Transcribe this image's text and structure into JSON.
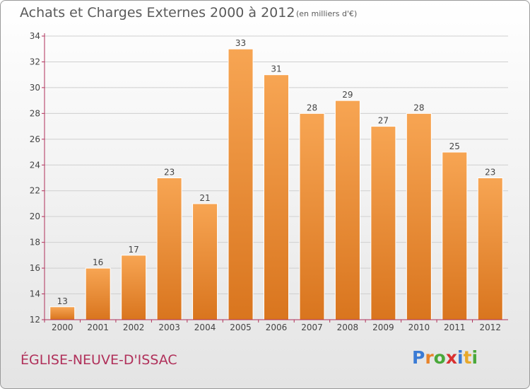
{
  "title": "Achats et Charges Externes 2000 à 2012",
  "unit_note": "(en milliers d'€)",
  "commune": "ÉGLISE-NEUVE-D'ISSAC",
  "logo": {
    "text": "Proxiti",
    "letters": [
      {
        "ch": "P",
        "color": "#3a7bd5"
      },
      {
        "ch": "r",
        "color": "#e8832a"
      },
      {
        "ch": "o",
        "color": "#4aa83a"
      },
      {
        "ch": "x",
        "color": "#d93030"
      },
      {
        "ch": "i",
        "color": "#3a7bd5"
      },
      {
        "ch": "t",
        "color": "#e8a82a"
      },
      {
        "ch": "i",
        "color": "#4aa83a"
      }
    ]
  },
  "colors": {
    "bar_light": "#f7a553",
    "bar_dark": "#d9751e",
    "axis": "#b0305a",
    "grid": "#cfcfcf"
  },
  "chart_data": {
    "type": "bar",
    "categories": [
      "2000",
      "2001",
      "2002",
      "2003",
      "2004",
      "2005",
      "2006",
      "2007",
      "2008",
      "2009",
      "2010",
      "2011",
      "2012"
    ],
    "values": [
      13,
      16,
      17,
      23,
      21,
      33,
      31,
      28,
      29,
      27,
      28,
      25,
      23
    ],
    "title": "Achats et Charges Externes 2000 à 2012",
    "xlabel": "",
    "ylabel": "",
    "ylim": [
      12,
      34
    ],
    "yticks": [
      12,
      14,
      16,
      18,
      20,
      22,
      24,
      26,
      28,
      30,
      32,
      34
    ],
    "grid": true,
    "data_labels": true
  }
}
